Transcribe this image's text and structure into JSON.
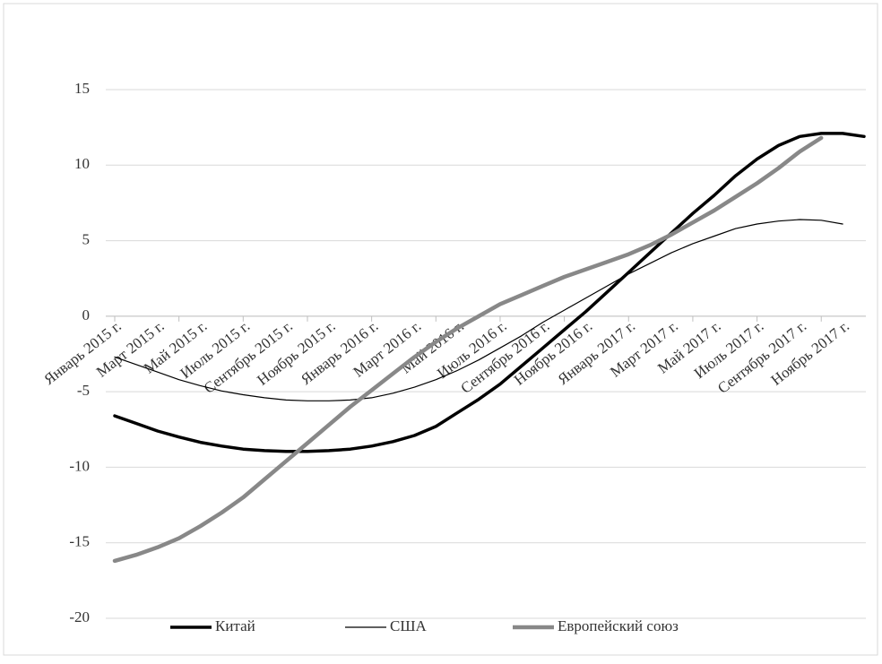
{
  "chart_data": {
    "type": "line",
    "categories": [
      "Январь 2015 г.",
      null,
      "Март 2015 г.",
      null,
      "Май 2015 г.",
      null,
      "Июль 2015 г.",
      null,
      "Сентябрь 2015 г.",
      null,
      "Ноябрь 2015 г.",
      null,
      "Январь 2016 г.",
      null,
      "Март 2016 г.",
      null,
      "Май 2016 г.",
      null,
      "Июль 2016 г.",
      null,
      "Сентябрь 2016 г.",
      null,
      "Ноябрь 2016 г.",
      null,
      "Январь 2017 г.",
      null,
      "Март 2017 г.",
      null,
      "Май 2017 г.",
      null,
      "Июль 2017 г.",
      null,
      "Сентябрь 2017 г.",
      null,
      "Ноябрь 2017 г.",
      null
    ],
    "series": [
      {
        "name": "Китай",
        "color": "#000000",
        "values": [
          -6.6,
          -7.1,
          -7.6,
          -8.0,
          -8.35,
          -8.6,
          -8.8,
          -8.9,
          -8.95,
          -8.95,
          -8.9,
          -8.8,
          -8.6,
          -8.3,
          -7.9,
          -7.3,
          -6.4,
          -5.5,
          -4.5,
          -3.3,
          -2.1,
          -0.9,
          0.3,
          1.6,
          2.9,
          4.2,
          5.5,
          6.8,
          8.0,
          9.3,
          10.4,
          11.3,
          11.9,
          12.1,
          12.1,
          11.9
        ]
      },
      {
        "name": "США",
        "color": "#000000",
        "values": [
          -2.7,
          -3.2,
          -3.7,
          -4.2,
          -4.6,
          -4.95,
          -5.2,
          -5.4,
          -5.55,
          -5.6,
          -5.6,
          -5.55,
          -5.4,
          -5.1,
          -4.7,
          -4.2,
          -3.6,
          -2.9,
          -2.1,
          -1.3,
          -0.4,
          0.4,
          1.2,
          2.0,
          2.8,
          3.5,
          4.2,
          4.8,
          5.3,
          5.8,
          6.1,
          6.3,
          6.4,
          6.35,
          6.1,
          null
        ]
      },
      {
        "name": "Европейский союз",
        "color": "#888888",
        "values": [
          -16.2,
          -15.8,
          -15.3,
          -14.7,
          -13.9,
          -13.0,
          -12.0,
          -10.8,
          -9.6,
          -8.4,
          -7.2,
          -6.0,
          -4.9,
          -3.8,
          -2.7,
          -1.7,
          -0.8,
          0.0,
          0.8,
          1.4,
          2.0,
          2.6,
          3.1,
          3.6,
          4.1,
          4.7,
          5.4,
          6.2,
          7.0,
          7.9,
          8.8,
          9.8,
          10.9,
          11.8,
          null,
          null
        ]
      }
    ],
    "ylim": [
      -20,
      15
    ],
    "yticks": [
      -20,
      -15,
      -10,
      -5,
      0,
      5,
      10,
      15
    ],
    "grid": true
  }
}
